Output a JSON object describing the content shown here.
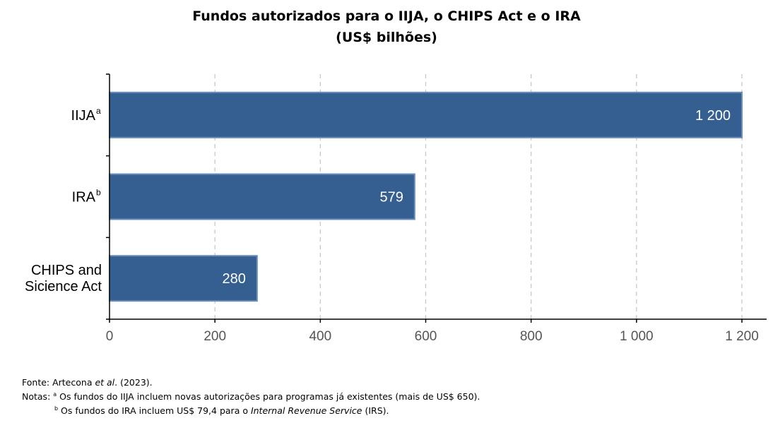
{
  "title_line1": "Fundos autorizados para o IIJA, o CHIPS Act e o IRA",
  "title_line2": "(US$ bilhões)",
  "chart_data": {
    "type": "bar",
    "orientation": "horizontal",
    "categories": [
      {
        "label": "IIJA",
        "sup": "a"
      },
      {
        "label": "IRA",
        "sup": "b"
      },
      {
        "label_lines": [
          "CHIPS and",
          "Sicience Act"
        ]
      }
    ],
    "values": [
      1200,
      579,
      280
    ],
    "data_labels": [
      "1 200",
      "579",
      "280"
    ],
    "xlim": [
      0,
      1200
    ],
    "xticks": [
      0,
      200,
      400,
      600,
      800,
      1000,
      1200
    ],
    "xtick_labels": [
      "0",
      "200",
      "400",
      "600",
      "800",
      "1 000",
      "1 200"
    ],
    "grid": "vertical dashed",
    "bar_color": "#355f91",
    "bar_edge_color": "#6b8fbd"
  },
  "notes": {
    "source_prefix": "Fonte: Artecona ",
    "source_italic": "et al",
    "source_suffix": ". (2023).",
    "notes_label": "Notas: ",
    "note_a_sup": "a",
    "note_a_text": " Os fundos do IIJA incluem novas autorizações para programas já existentes (mais de US$ 650).",
    "note_b_sup": "b",
    "note_b_text": " Os fundos do IRA incluem US$ 79,4 para o ",
    "note_b_italic": "Internal Revenue Service",
    "note_b_suffix": " (IRS)."
  }
}
